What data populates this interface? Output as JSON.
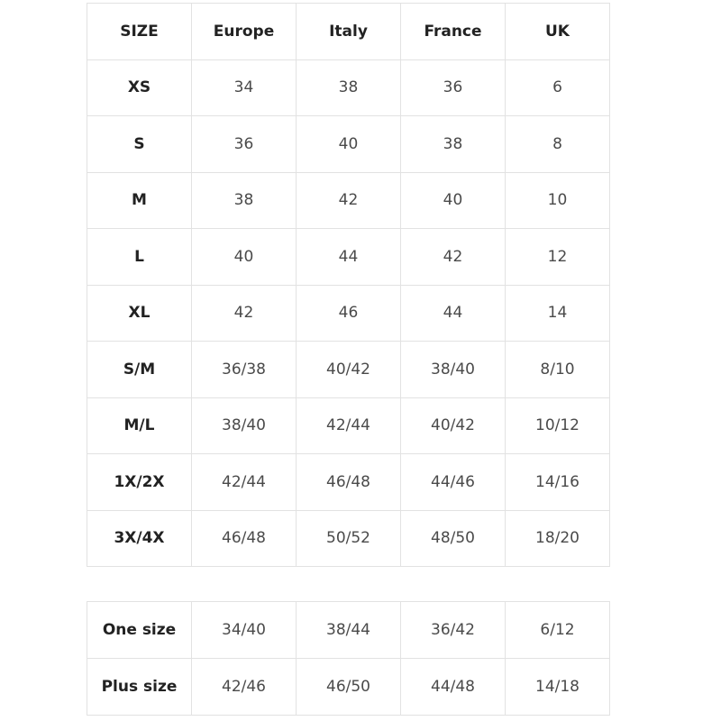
{
  "headers": [
    "SIZE",
    "Europe",
    "Italy",
    "France",
    "UK"
  ],
  "rows": [
    [
      "XS",
      "34",
      "38",
      "36",
      "6"
    ],
    [
      "S",
      "36",
      "40",
      "38",
      "8"
    ],
    [
      "M",
      "38",
      "42",
      "40",
      "10"
    ],
    [
      "L",
      "40",
      "44",
      "42",
      "12"
    ],
    [
      "XL",
      "42",
      "46",
      "44",
      "14"
    ],
    [
      "S/M",
      "36/38",
      "40/42",
      "38/40",
      "8/10"
    ],
    [
      "M/L",
      "38/40",
      "42/44",
      "40/42",
      "10/12"
    ],
    [
      "1X/2X",
      "42/44",
      "46/48",
      "44/46",
      "14/16"
    ],
    [
      "3X/4X",
      "46/48",
      "50/52",
      "48/50",
      "18/20"
    ]
  ],
  "extra_rows": [
    [
      "One size",
      "34/40",
      "38/44",
      "36/42",
      "6/12"
    ],
    [
      "Plus size",
      "42/46",
      "46/50",
      "44/48",
      "14/18"
    ]
  ]
}
